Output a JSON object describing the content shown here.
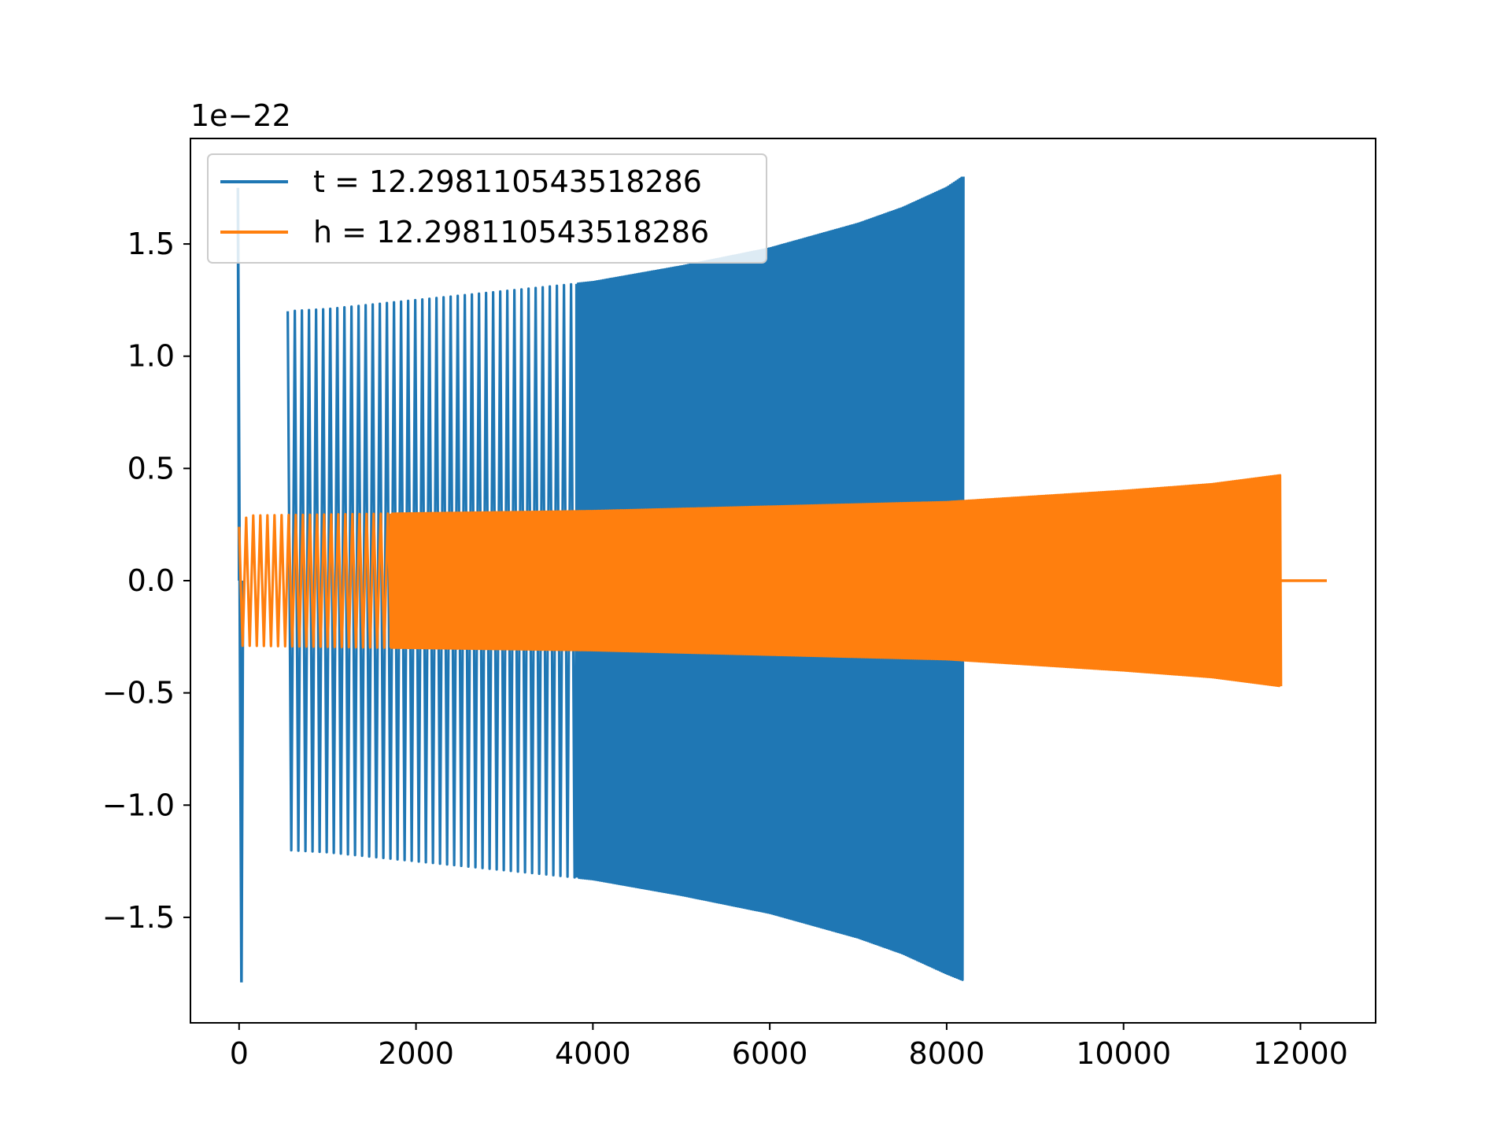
{
  "chart_data": {
    "type": "line",
    "title": "",
    "xlabel": "",
    "ylabel": "",
    "y_offset_label": "1e−22",
    "xlim": [
      -550,
      12850
    ],
    "ylim": [
      -1.97,
      1.97
    ],
    "x_ticks": [
      0,
      2000,
      4000,
      6000,
      8000,
      10000,
      12000
    ],
    "x_tick_labels": [
      "0",
      "2000",
      "4000",
      "6000",
      "8000",
      "10000",
      "12000"
    ],
    "y_ticks": [
      1.5,
      1.0,
      0.5,
      0.0,
      -0.5,
      -1.0,
      -1.5
    ],
    "y_tick_labels": [
      "1.5",
      "1.0",
      "0.5",
      "0.0",
      "−0.5",
      "−1.0",
      "−1.5"
    ],
    "grid": false,
    "legend_position": "upper-left",
    "series": [
      {
        "name": "t = 12.298110543518286",
        "color": "#1f77b4",
        "spike": {
          "x": 0,
          "max": 1.75,
          "min": -1.79
        },
        "envelope": {
          "x_start": 550,
          "x_end": 8190,
          "upper": [
            [
              550,
              1.2
            ],
            [
              1000,
              1.21
            ],
            [
              2000,
              1.25
            ],
            [
              3000,
              1.29
            ],
            [
              4000,
              1.33
            ],
            [
              5000,
              1.4
            ],
            [
              6000,
              1.48
            ],
            [
              7000,
              1.59
            ],
            [
              7500,
              1.66
            ],
            [
              8000,
              1.75
            ],
            [
              8190,
              1.8
            ]
          ],
          "lower": [
            [
              550,
              -1.2
            ],
            [
              1000,
              -1.21
            ],
            [
              2000,
              -1.25
            ],
            [
              3000,
              -1.29
            ],
            [
              4000,
              -1.33
            ],
            [
              5000,
              -1.4
            ],
            [
              6000,
              -1.48
            ],
            [
              7000,
              -1.59
            ],
            [
              7500,
              -1.66
            ],
            [
              8000,
              -1.75
            ],
            [
              8190,
              -1.78
            ]
          ],
          "dense_from_x": 3800
        }
      },
      {
        "name": "h = 12.298110543518286",
        "color": "#ff7f0e",
        "envelope": {
          "x_start": 0,
          "x_end": 11780,
          "upper": [
            [
              0,
              0.24
            ],
            [
              100,
              0.29
            ],
            [
              2000,
              0.3
            ],
            [
              4000,
              0.31
            ],
            [
              6000,
              0.33
            ],
            [
              8000,
              0.35
            ],
            [
              10000,
              0.4
            ],
            [
              11000,
              0.43
            ],
            [
              11780,
              0.47
            ]
          ],
          "lower": [
            [
              0,
              -0.29
            ],
            [
              100,
              -0.29
            ],
            [
              2000,
              -0.3
            ],
            [
              4000,
              -0.31
            ],
            [
              6000,
              -0.33
            ],
            [
              8000,
              -0.35
            ],
            [
              10000,
              -0.4
            ],
            [
              11000,
              -0.43
            ],
            [
              11780,
              -0.47
            ]
          ],
          "dense_from_x": 1700
        },
        "tail": {
          "x_start": 11780,
          "x_end": 12298,
          "y": 0.0
        }
      }
    ]
  }
}
